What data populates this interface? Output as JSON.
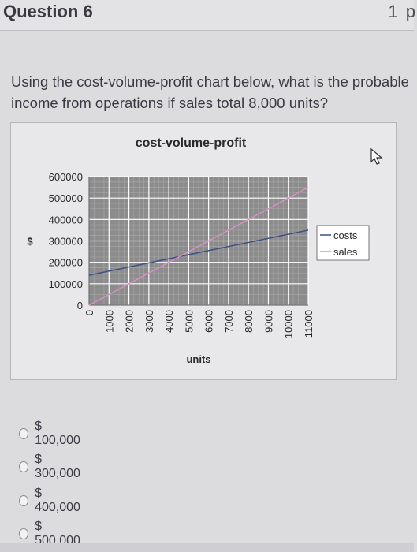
{
  "header": {
    "title": "Question 6",
    "points": "1 p"
  },
  "question": {
    "text": "Using the cost-volume-profit chart below, what is the probable income from operations if sales total 8,000 units?"
  },
  "chart_data": {
    "type": "line",
    "title": "cost-volume-profit",
    "xlabel": "units",
    "ylabel": "$",
    "x_ticks": [
      "0",
      "1000",
      "2000",
      "3000",
      "4000",
      "5000",
      "6000",
      "7000",
      "8000",
      "9000",
      "10000",
      "11000"
    ],
    "y_ticks": [
      "0",
      "100000",
      "200000",
      "300000",
      "400000",
      "500000",
      "600000"
    ],
    "xlim": [
      0,
      11000
    ],
    "ylim": [
      0,
      600000
    ],
    "grid": true,
    "legend_position": "right",
    "x": [
      0,
      11000
    ],
    "series": [
      {
        "name": "costs",
        "color": "#3e4f86",
        "values": [
          140000,
          350000
        ]
      },
      {
        "name": "sales",
        "color": "#d98fc4",
        "values": [
          0,
          550000
        ]
      }
    ]
  },
  "options": [
    {
      "label": "$ 100,000"
    },
    {
      "label": "$ 300,000"
    },
    {
      "label": "$ 400,000"
    },
    {
      "label": "$ 500,000"
    }
  ]
}
